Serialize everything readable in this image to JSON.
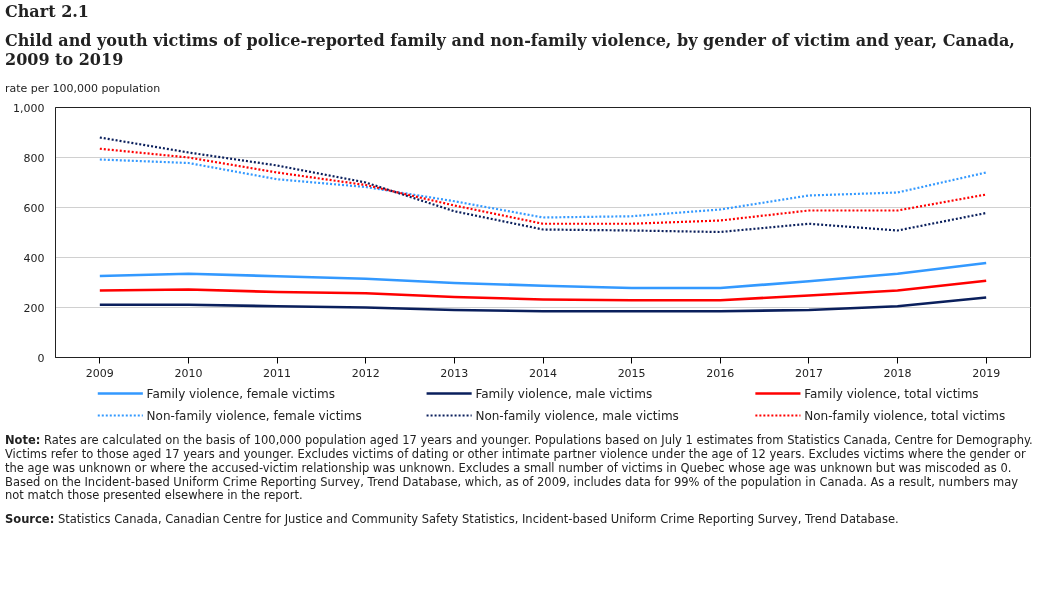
{
  "chart_data": {
    "type": "line",
    "title": "Chart 2.1",
    "subtitle": "Child and youth victims of police-reported family and non-family violence, by gender of victim and year, Canada, 2009 to 2019",
    "ylabel": "rate per 100,000 population",
    "categories": [
      "2009",
      "2010",
      "2011",
      "2012",
      "2013",
      "2014",
      "2015",
      "2016",
      "2017",
      "2018",
      "2019"
    ],
    "ylim": [
      0,
      1000
    ],
    "yticks": [
      0,
      200,
      400,
      600,
      800,
      {
        "value": 1000,
        "label": "1,000"
      }
    ],
    "grid": "y",
    "legend": "bottom",
    "marker": "none",
    "series": [
      {
        "name": "Family violence, female victims",
        "color": "#3399ff",
        "line_style": "solid",
        "values": [
          326,
          335,
          325,
          315,
          298,
          287,
          278,
          278,
          305,
          335,
          378
        ]
      },
      {
        "name": "Family violence, male victims",
        "color": "#0a1f5c",
        "line_style": "solid",
        "values": [
          211,
          211,
          205,
          200,
          190,
          185,
          185,
          185,
          190,
          205,
          240
        ]
      },
      {
        "name": "Family violence, total victims",
        "color": "#ff0000",
        "line_style": "solid",
        "values": [
          268,
          272,
          262,
          257,
          242,
          232,
          229,
          229,
          248,
          268,
          307
        ]
      },
      {
        "name": "Non-family violence, female victims",
        "color": "#3399ff",
        "line_style": "dotted",
        "values": [
          792,
          778,
          713,
          682,
          625,
          560,
          565,
          592,
          648,
          660,
          740
        ]
      },
      {
        "name": "Non-family violence, male victims",
        "color": "#0a1f5c",
        "line_style": "dotted",
        "values": [
          880,
          820,
          768,
          700,
          585,
          512,
          508,
          502,
          535,
          508,
          578
        ]
      },
      {
        "name": "Non-family violence, total victims",
        "color": "#ff0000",
        "line_style": "dotted",
        "values": [
          835,
          800,
          740,
          690,
          608,
          535,
          535,
          548,
          588,
          588,
          652
        ]
      }
    ],
    "annotations": [
      "Note: Rates are calculated on the basis of 100,000 population aged 17 years and younger. Populations based on July 1 estimates from Statistics Canada, Centre for Demography. Victims refer to those aged 17 years and younger. Excludes victims of dating or other intimate partner violence under the age of 12 years. Excludes victims where the gender or the age was unknown or where the accused-victim relationship was unknown. Excludes a small number of victims in Quebec whose age was unknown but was miscoded as 0. Based on the Incident-based Uniform Crime Reporting Survey, Trend Database, which, as of 2009, includes data for 99% of the population in Canada. As a result, numbers may not match those presented elsewhere in the report.",
      "Source: Statistics Canada, Canadian Centre for Justice and Community Safety Statistics, Incident-based Uniform Crime Reporting Survey, Trend Database."
    ]
  }
}
